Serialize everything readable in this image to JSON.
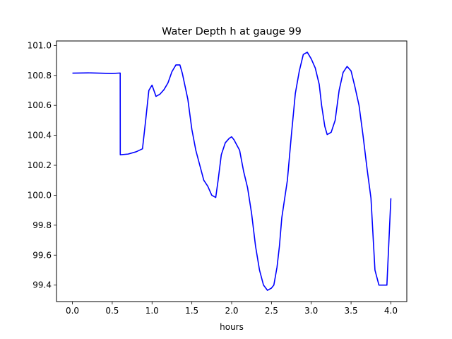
{
  "chart_data": {
    "type": "line",
    "title": "Water Depth h at gauge 99",
    "xlabel": "hours",
    "ylabel": "",
    "xlim": [
      -0.2,
      4.2
    ],
    "ylim": [
      99.29,
      101.03
    ],
    "xticks": [
      0.0,
      0.5,
      1.0,
      1.5,
      2.0,
      2.5,
      3.0,
      3.5,
      4.0
    ],
    "xtick_labels": [
      "0.0",
      "0.5",
      "1.0",
      "1.5",
      "2.0",
      "2.5",
      "3.0",
      "3.5",
      "4.0"
    ],
    "yticks": [
      99.4,
      99.6,
      99.8,
      100.0,
      100.2,
      100.4,
      100.6,
      100.8,
      101.0
    ],
    "ytick_labels": [
      "99.4",
      "99.6",
      "99.8",
      "100.0",
      "100.2",
      "100.4",
      "100.6",
      "100.8",
      "101.0"
    ],
    "grid": false,
    "series": [
      {
        "color": "#0000ff",
        "x": [
          0.0,
          0.2,
          0.5,
          0.6,
          0.601,
          0.7,
          0.8,
          0.88,
          0.92,
          0.96,
          1.0,
          1.05,
          1.1,
          1.15,
          1.2,
          1.25,
          1.3,
          1.35,
          1.38,
          1.45,
          1.5,
          1.55,
          1.6,
          1.65,
          1.7,
          1.75,
          1.8,
          1.83,
          1.87,
          1.92,
          1.97,
          2.0,
          2.03,
          2.06,
          2.1,
          2.15,
          2.2,
          2.25,
          2.3,
          2.35,
          2.4,
          2.45,
          2.5,
          2.53,
          2.57,
          2.6,
          2.63,
          2.7,
          2.75,
          2.8,
          2.85,
          2.9,
          2.95,
          3.0,
          3.05,
          3.1,
          3.13,
          3.17,
          3.2,
          3.25,
          3.3,
          3.35,
          3.4,
          3.45,
          3.5,
          3.55,
          3.6,
          3.65,
          3.7,
          3.75,
          3.8,
          3.85,
          3.9,
          3.95,
          4.0
        ],
        "y": [
          100.815,
          100.817,
          100.813,
          100.816,
          100.27,
          100.275,
          100.29,
          100.31,
          100.5,
          100.7,
          100.735,
          100.66,
          100.675,
          100.705,
          100.75,
          100.825,
          100.87,
          100.87,
          100.815,
          100.64,
          100.44,
          100.3,
          100.2,
          100.1,
          100.06,
          100.0,
          99.985,
          100.1,
          100.27,
          100.35,
          100.38,
          100.39,
          100.37,
          100.34,
          100.3,
          100.16,
          100.05,
          99.88,
          99.66,
          99.5,
          99.4,
          99.365,
          99.38,
          99.4,
          99.52,
          99.66,
          99.85,
          100.1,
          100.4,
          100.68,
          100.83,
          100.94,
          100.955,
          100.91,
          100.85,
          100.74,
          100.6,
          100.46,
          100.405,
          100.42,
          100.5,
          100.7,
          100.82,
          100.86,
          100.83,
          100.72,
          100.6,
          100.4,
          100.18,
          99.98,
          99.5,
          99.4,
          99.4,
          99.4,
          99.98
        ]
      }
    ]
  }
}
